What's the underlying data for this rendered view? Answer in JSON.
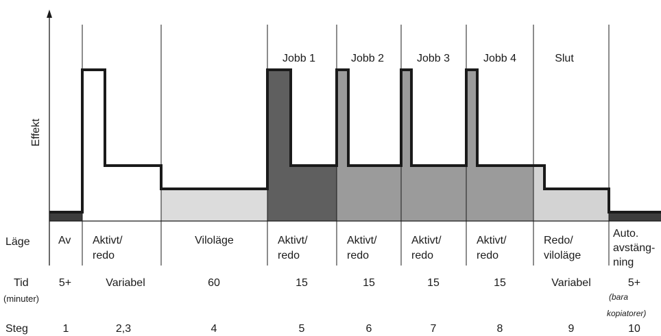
{
  "chart_data": {
    "type": "diagram",
    "ylabel": "Effekt",
    "phase_labels": [
      "Jobb 1",
      "Jobb 2",
      "Jobb 3",
      "Jobb 4",
      "Slut"
    ],
    "row_headers": {
      "mode": "Läge",
      "time": "Tid",
      "time_unit": "(minuter)",
      "step": "Steg"
    },
    "columns": [
      {
        "mode": [
          "Av"
        ],
        "time": "5+",
        "step": "1",
        "fill": "#3d3d3d"
      },
      {
        "mode": [
          "Aktivt/",
          "redo"
        ],
        "time": "Variabel",
        "step": "2,3",
        "fill": "none"
      },
      {
        "mode": [
          "Viloläge"
        ],
        "time": "60",
        "step": "4",
        "fill": "#dcdcdc"
      },
      {
        "mode": [
          "Aktivt/",
          "redo"
        ],
        "time": "15",
        "step": "5",
        "fill": "#5f5f5f"
      },
      {
        "mode": [
          "Aktivt/",
          "redo"
        ],
        "time": "15",
        "step": "6",
        "fill": "#9b9b9b"
      },
      {
        "mode": [
          "Aktivt/",
          "redo"
        ],
        "time": "15",
        "step": "7",
        "fill": "#9b9b9b"
      },
      {
        "mode": [
          "Aktivt/",
          "redo"
        ],
        "time": "15",
        "step": "8",
        "fill": "#9b9b9b"
      },
      {
        "mode": [
          "Redo/",
          "viloläge"
        ],
        "time": "Variabel",
        "step": "9",
        "fill": "#d3d3d3"
      },
      {
        "mode": [
          "Auto.",
          "avstäng-",
          "ning"
        ],
        "time": "5+",
        "time_note": [
          "(bara",
          "kopiatorer)"
        ],
        "step": "10",
        "fill": "#3d3d3d"
      }
    ],
    "colors": {
      "line": "#1a1a1a",
      "off": "#3d3d3d",
      "job1": "#5f5f5f",
      "jobs": "#9b9b9b",
      "sleep": "#dcdcdc",
      "ready_sleep": "#d3d3d3"
    }
  }
}
